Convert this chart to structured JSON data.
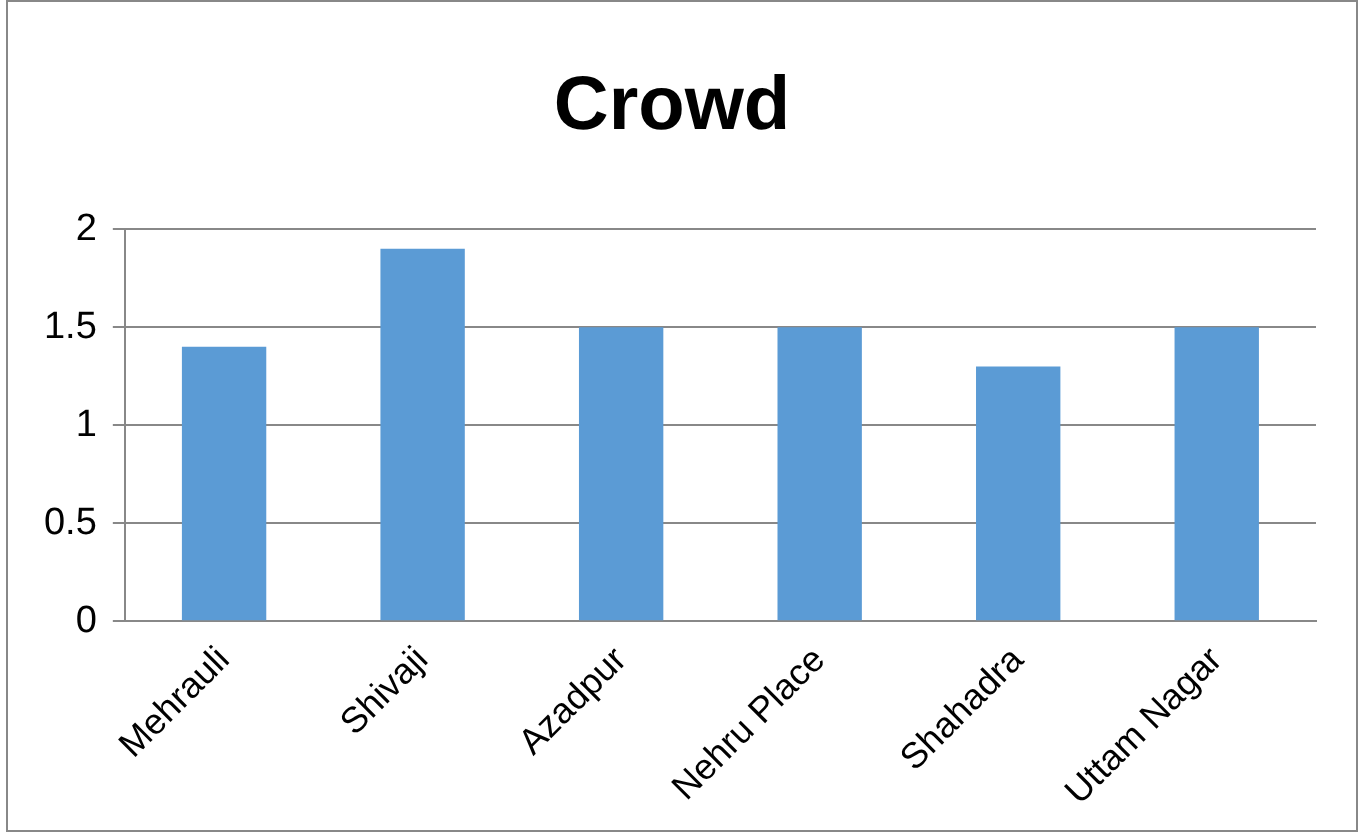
{
  "chart_data": {
    "type": "bar",
    "title": "Crowd",
    "categories": [
      "Mehrauli",
      "Shivaji",
      "Azadpur",
      "Nehru Place",
      "Shahadra",
      "Uttam Nagar"
    ],
    "values": [
      1.4,
      1.9,
      1.5,
      1.5,
      1.3,
      1.5
    ],
    "color": "#5b9bd5",
    "ylim": [
      0,
      2
    ],
    "yticks": [
      0,
      0.5,
      1,
      1.5,
      2
    ],
    "grid": "y",
    "legend": false
  }
}
